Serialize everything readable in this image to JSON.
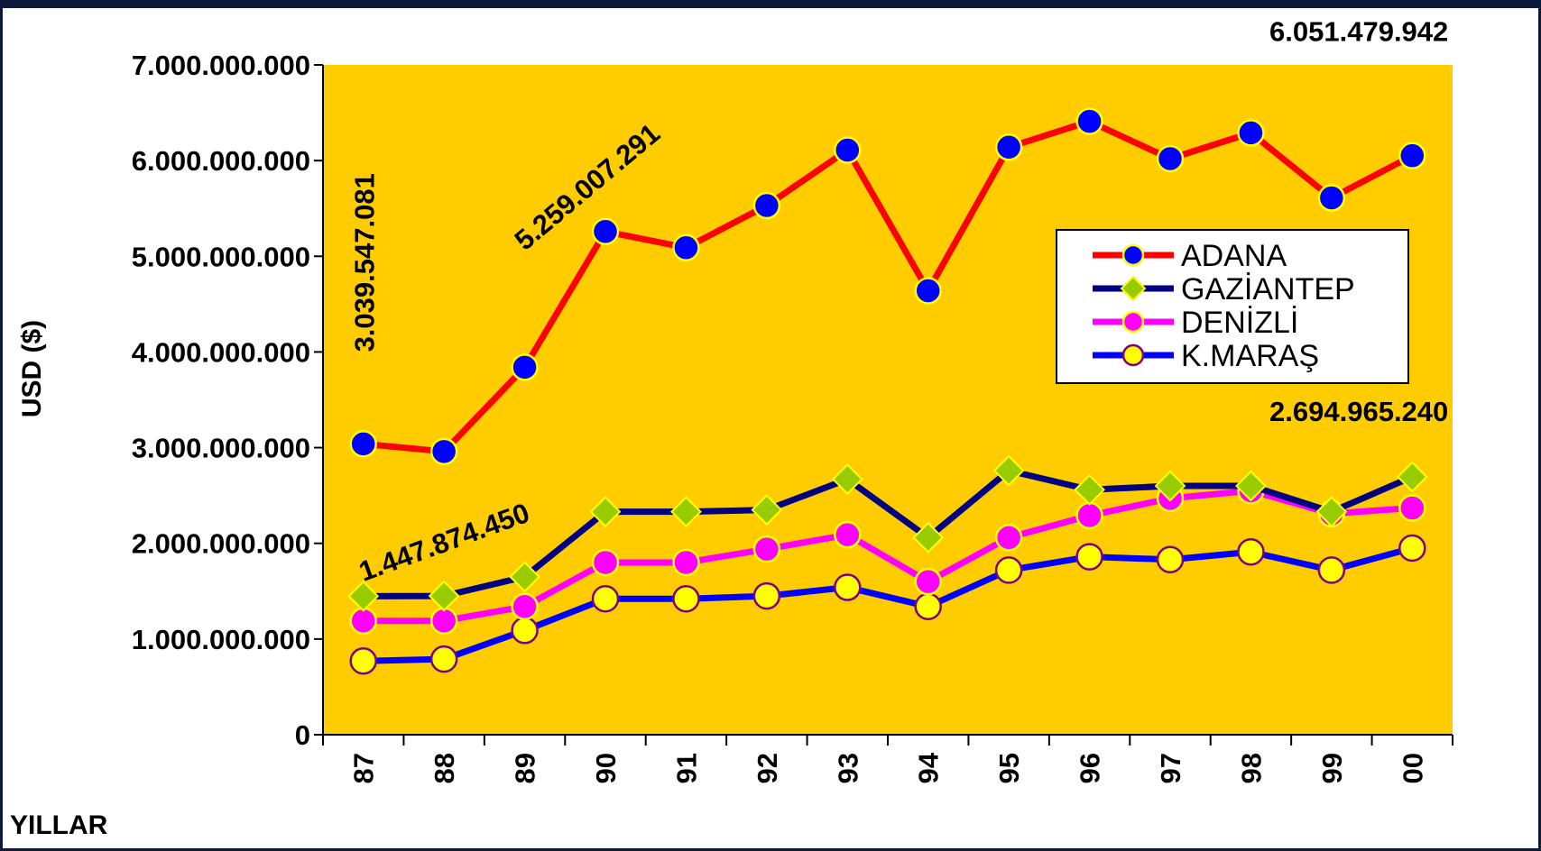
{
  "chart_data": {
    "type": "line",
    "ylabel": "USD ($)",
    "xlabel": "YILLAR",
    "categories": [
      "87",
      "88",
      "89",
      "90",
      "91",
      "92",
      "93",
      "94",
      "95",
      "96",
      "97",
      "98",
      "99",
      "00"
    ],
    "ylim": [
      0,
      7000000000
    ],
    "yticks": [
      "0",
      "1.000.000.000",
      "2.000.000.000",
      "3.000.000.000",
      "4.000.000.000",
      "5.000.000.000",
      "6.000.000.000",
      "7.000.000.000"
    ],
    "legend_position": "right",
    "plot_background": "#FFCC00",
    "series": [
      {
        "name": "ADANA",
        "line_color": "#FF0000",
        "marker": "circle",
        "marker_fill": "#0000FF",
        "marker_stroke": "#FFFF00",
        "values": [
          3039547081,
          2960000000,
          3840000000,
          5259007291,
          5090000000,
          5530000000,
          6110000000,
          4640000000,
          6140000000,
          6410000000,
          6020000000,
          6290000000,
          5610000000,
          6051479942
        ]
      },
      {
        "name": "GAZİANTEP",
        "line_color": "#000080",
        "marker": "diamond",
        "marker_fill": "#99CC00",
        "marker_stroke": "#FFFF00",
        "values": [
          1447874450,
          1450000000,
          1650000000,
          2330000000,
          2330000000,
          2350000000,
          2670000000,
          2060000000,
          2760000000,
          2560000000,
          2600000000,
          2600000000,
          2330000000,
          2694965240
        ]
      },
      {
        "name": "DENİZLİ",
        "line_color": "#FF00FF",
        "marker": "circle",
        "marker_fill": "#FF00FF",
        "marker_stroke": "#FFFF00",
        "values": [
          1190000000,
          1190000000,
          1340000000,
          1800000000,
          1800000000,
          1940000000,
          2090000000,
          1600000000,
          2060000000,
          2290000000,
          2470000000,
          2550000000,
          2310000000,
          2370000000
        ]
      },
      {
        "name": "K.MARAŞ",
        "line_color": "#0000FF",
        "marker": "circle",
        "marker_fill": "#FFFF00",
        "marker_stroke": "#800080",
        "values": [
          770000000,
          790000000,
          1090000000,
          1420000000,
          1420000000,
          1450000000,
          1540000000,
          1340000000,
          1720000000,
          1860000000,
          1830000000,
          1910000000,
          1720000000,
          1950000000
        ]
      }
    ],
    "annotations": [
      {
        "text": "3.039.547.081",
        "x": "87",
        "y": 4000000000,
        "rotate": -90
      },
      {
        "text": "5.259.007.291",
        "x": "89",
        "y": 5050000000,
        "rotate": -40
      },
      {
        "text": "1.447.874.450",
        "x": "87",
        "y": 1600000000,
        "rotate": -20
      },
      {
        "text": "6.051.479.942",
        "x": "00",
        "y": 7250000000,
        "rotate": 0
      },
      {
        "text": "2.694.965.240",
        "x": "00",
        "y": 3280000000,
        "rotate": 0
      }
    ]
  }
}
